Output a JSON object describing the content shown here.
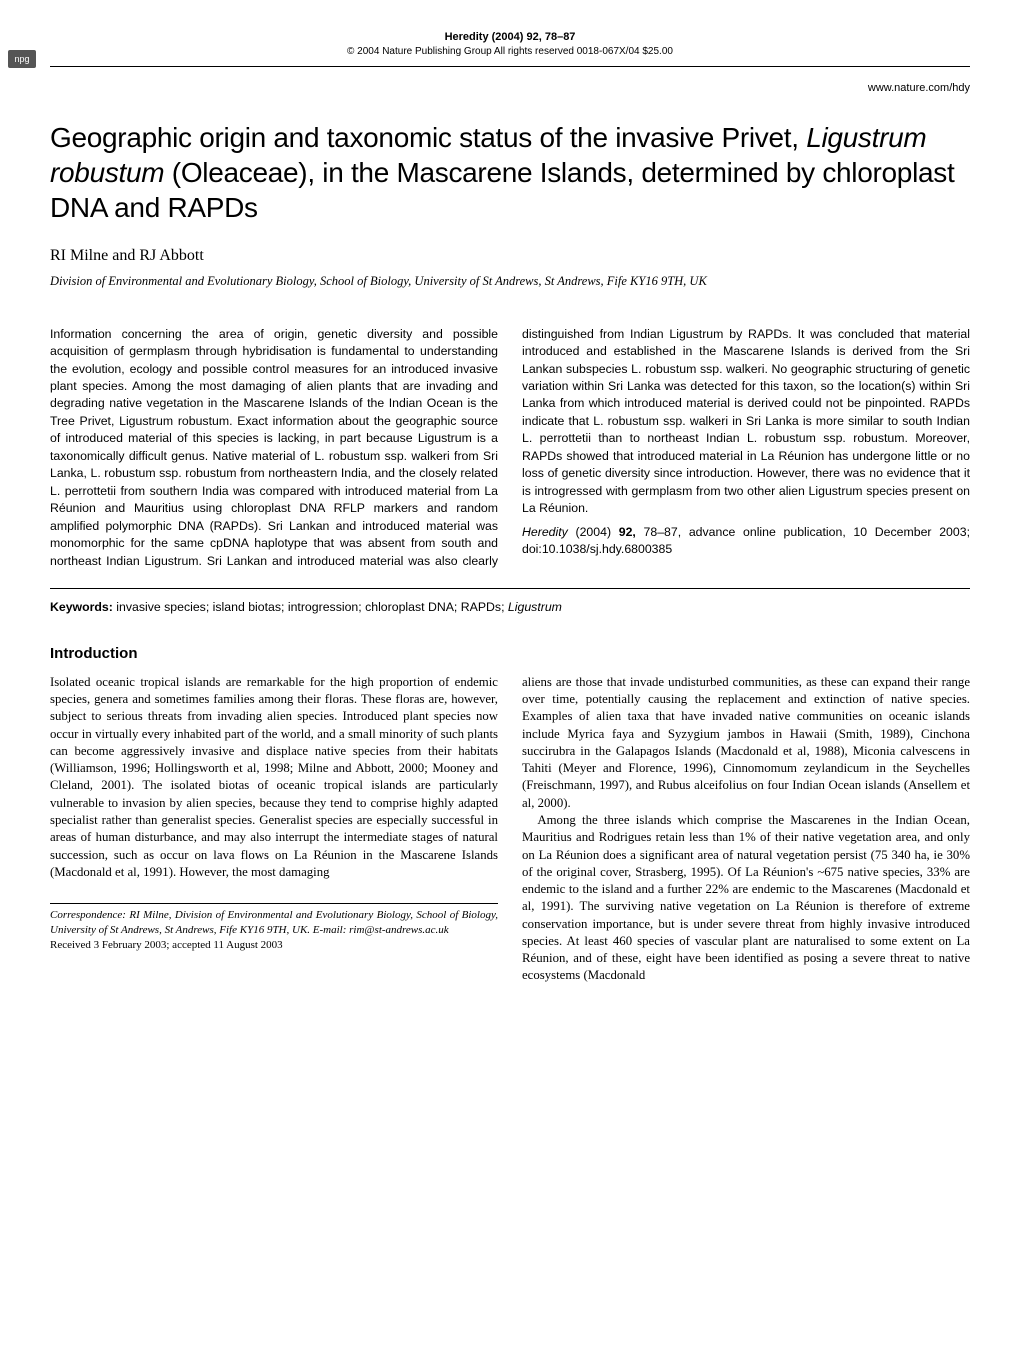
{
  "header": {
    "npg_badge": "npg",
    "journal_ref": "Heredity (2004) 92, 78–87",
    "copyright": "© 2004 Nature Publishing Group All rights reserved 0018-067X/04 $25.00",
    "website": "www.nature.com/hdy"
  },
  "title": {
    "pre": "Geographic origin and taxonomic status of the invasive Privet, ",
    "sci": "Ligustrum robustum",
    "post": " (Oleaceae), in the Mascarene Islands, determined by chloroplast DNA and RAPDs"
  },
  "authors": "RI Milne and RJ Abbott",
  "affiliation": "Division of Environmental and Evolutionary Biology, School of Biology, University of St Andrews, St Andrews, Fife KY16 9TH, UK",
  "abstract": {
    "text": "Information concerning the area of origin, genetic diversity and possible acquisition of germplasm through hybridisation is fundamental to understanding the evolution, ecology and possible control measures for an introduced invasive plant species. Among the most damaging of alien plants that are invading and degrading native vegetation in the Mascarene Islands of the Indian Ocean is the Tree Privet, Ligustrum robustum. Exact information about the geographic source of introduced material of this species is lacking, in part because Ligustrum is a taxonomically difficult genus. Native material of L. robustum ssp. walkeri from Sri Lanka, L. robustum ssp. robustum from northeastern India, and the closely related L. perrottetii from southern India was compared with introduced material from La Réunion and Mauritius using chloroplast DNA RFLP markers and random amplified polymorphic DNA (RAPDs). Sri Lankan and introduced material was monomorphic for the same cpDNA haplotype that was absent from south and northeast Indian Ligustrum. Sri Lankan and introduced material was also clearly distinguished from Indian Ligustrum by RAPDs. It was concluded that material introduced and established in the Mascarene Islands is derived from the Sri Lankan subspecies L. robustum ssp. walkeri. No geographic structuring of genetic variation within Sri Lanka was detected for this taxon, so the location(s) within Sri Lanka from which introduced material is derived could not be pinpointed. RAPDs indicate that L. robustum ssp. walkeri in Sri Lanka is more similar to south Indian L. perrottetii than to northeast Indian L. robustum ssp. robustum. Moreover, RAPDs showed that introduced material in La Réunion has undergone little or no loss of genetic diversity since introduction. However, there was no evidence that it is introgressed with germplasm from two other alien Ligustrum species present on La Réunion.",
    "heredity_pre": "Heredity",
    "heredity_year": " (2004) ",
    "heredity_vol": "92,",
    "heredity_post": " 78–87, advance online publication, 10 December 2003; doi:10.1038/sj.hdy.6800385"
  },
  "keywords": {
    "label": "Keywords:",
    "text": " invasive species; island biotas; introgression; chloroplast DNA; RAPDs; ",
    "sci": "Ligustrum"
  },
  "section_heading": "Introduction",
  "body": {
    "p1": "Isolated oceanic tropical islands are remarkable for the high proportion of endemic species, genera and sometimes families among their floras. These floras are, however, subject to serious threats from invading alien species. Introduced plant species now occur in virtually every inhabited part of the world, and a small minority of such plants can become aggressively invasive and displace native species from their habitats (Williamson, 1996; Hollingsworth et al, 1998; Milne and Abbott, 2000; Mooney and Cleland, 2001). The isolated biotas of oceanic tropical islands are particularly vulnerable to invasion by alien species, because they tend to comprise highly adapted specialist rather than generalist species. Generalist species are especially successful in areas of human disturbance, and may also interrupt the intermediate stages of natural succession, such as occur on lava flows on La Réunion in the Mascarene Islands (Macdonald et al, 1991). However, the most damaging",
    "p2": "aliens are those that invade undisturbed communities, as these can expand their range over time, potentially causing the replacement and extinction of native species. Examples of alien taxa that have invaded native communities on oceanic islands include Myrica faya and Syzygium jambos in Hawaii (Smith, 1989), Cinchona succirubra in the Galapagos Islands (Macdonald et al, 1988), Miconia calvescens in Tahiti (Meyer and Florence, 1996), Cinnomomum zeylandicum in the Seychelles (Freischmann, 1997), and Rubus alceifolius on four Indian Ocean islands (Ansellem et al, 2000).",
    "p3": "Among the three islands which comprise the Mascarenes in the Indian Ocean, Mauritius and Rodrigues retain less than 1% of their native vegetation area, and only on La Réunion does a significant area of natural vegetation persist (75 340 ha, ie 30% of the original cover, Strasberg, 1995). Of La Réunion's ~675 native species, 33% are endemic to the island and a further 22% are endemic to the Mascarenes (Macdonald et al, 1991). The surviving native vegetation on La Réunion is therefore of extreme conservation importance, but is under severe threat from highly invasive introduced species. At least 460 species of vascular plant are naturalised to some extent on La Réunion, and of these, eight have been identified as posing a severe threat to native ecosystems (Macdonald"
  },
  "correspondence": {
    "text": "Correspondence: RI Milne, Division of Environmental and Evolutionary Biology, School of Biology, University of St Andrews, St Andrews, Fife KY16 9TH, UK. E-mail: rim@st-andrews.ac.uk",
    "received": "Received 3 February 2003; accepted 11 August 2003"
  }
}
